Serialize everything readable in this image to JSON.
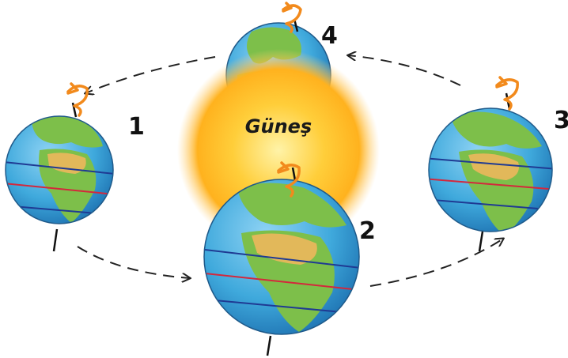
{
  "sun": {
    "label": "Güneş",
    "color_core": "#fff3a8",
    "color_mid": "#ffce3a",
    "color_edge": "#ffa81c"
  },
  "earths": [
    {
      "number": "1",
      "position_name": "left"
    },
    {
      "number": "2",
      "position_name": "front"
    },
    {
      "number": "3",
      "position_name": "right"
    },
    {
      "number": "4",
      "position_name": "back"
    }
  ],
  "colors": {
    "ocean": "#3fa9dc",
    "ocean_dark": "#1f7fbf",
    "land": "#7dbf4a",
    "desert": "#e2b85a",
    "tropic_line": "#1f3a93",
    "equator_line": "#d4283c",
    "rotation_arrow": "#f28a1c",
    "orbit_arrow": "#222222"
  },
  "icons": {
    "rotation": "rotation-arrow-icon",
    "orbit": "orbit-arrow-icon"
  }
}
